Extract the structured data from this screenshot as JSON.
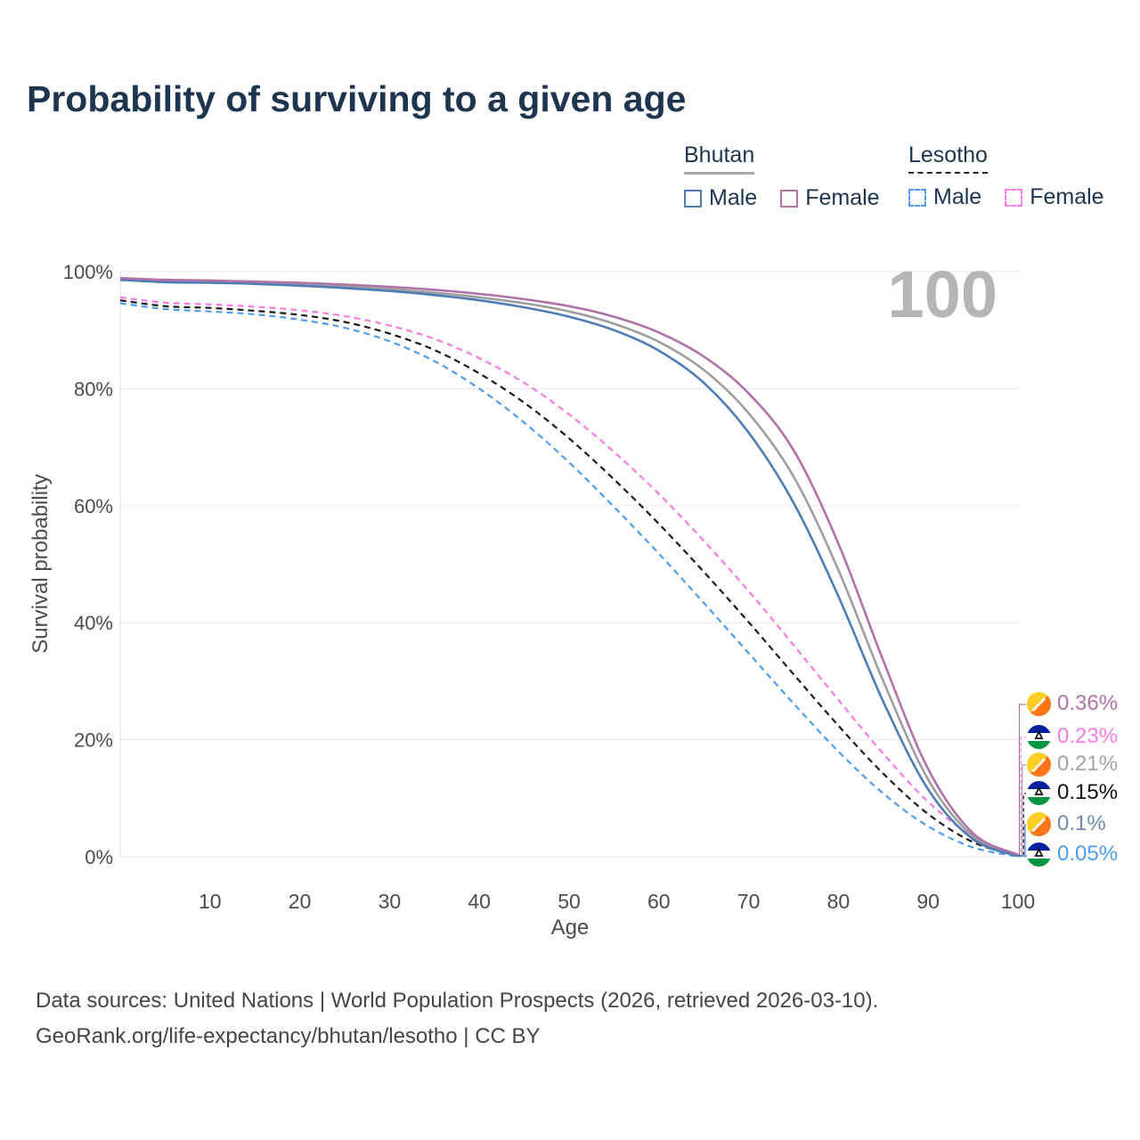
{
  "title": "Probability of surviving to a given age",
  "legend": {
    "groups": [
      {
        "country": "Bhutan",
        "underline": "solid",
        "underline_color": "#a8a8a8",
        "items": [
          {
            "label": "Male",
            "color": "#4e7cb5",
            "dashed": false
          },
          {
            "label": "Female",
            "color": "#b172a9",
            "dashed": false
          }
        ]
      },
      {
        "country": "Lesotho",
        "underline": "dashed",
        "underline_color": "#222222",
        "items": [
          {
            "label": "Male",
            "color": "#4f9df2",
            "dashed": true
          },
          {
            "label": "Female",
            "color": "#fa7ce0",
            "dashed": true
          }
        ]
      }
    ]
  },
  "chart_data": {
    "type": "line",
    "title": "Probability of surviving to a given age",
    "xlabel": "Age",
    "ylabel": "Survival probability",
    "xlim": [
      0,
      100
    ],
    "ylim": [
      0,
      100
    ],
    "x_ticks": [
      10,
      20,
      30,
      40,
      50,
      60,
      70,
      80,
      90,
      100
    ],
    "y_tick_labels": [
      "0%",
      "20%",
      "40%",
      "60%",
      "80%",
      "100%"
    ],
    "grid": "horizontal",
    "legend_position": "top-right",
    "watermark": "100",
    "x": [
      0,
      5,
      10,
      15,
      20,
      25,
      30,
      35,
      40,
      45,
      50,
      55,
      60,
      65,
      70,
      75,
      80,
      85,
      90,
      95,
      100
    ],
    "series": [
      {
        "key": "lesotho_both",
        "name": "Lesotho — Both sexes",
        "color": "#1a1a1a",
        "style": "dashed",
        "values": [
          95.1,
          94.1,
          93.8,
          93.3,
          92.6,
          91.4,
          89.4,
          86.6,
          82.6,
          77.6,
          71.5,
          64.5,
          56.9,
          48.7,
          40.1,
          31.2,
          22.4,
          14.2,
          7.3,
          2.5,
          0.15
        ]
      },
      {
        "key": "lesotho_male",
        "name": "Lesotho — Male",
        "color": "#4f9df2",
        "style": "dashed",
        "values": [
          94.6,
          93.6,
          93.2,
          92.7,
          91.8,
          90.4,
          88.1,
          84.7,
          80.0,
          74.2,
          67.4,
          59.8,
          51.8,
          43.4,
          34.8,
          26.2,
          18.0,
          10.8,
          5.2,
          1.6,
          0.05
        ]
      },
      {
        "key": "lesotho_female",
        "name": "Lesotho — Female",
        "color": "#fa7ce0",
        "style": "dashed",
        "values": [
          95.6,
          94.7,
          94.4,
          94.0,
          93.4,
          92.4,
          90.8,
          88.5,
          85.2,
          81.0,
          75.6,
          69.2,
          62.0,
          54.0,
          45.4,
          36.2,
          26.8,
          17.6,
          9.4,
          3.4,
          0.23
        ]
      },
      {
        "key": "bhutan_both",
        "name": "Bhutan — Both sexes",
        "color": "#9e9e9e",
        "style": "solid",
        "values": [
          98.7,
          98.4,
          98.3,
          98.1,
          97.8,
          97.5,
          97.0,
          96.4,
          95.6,
          94.6,
          93.2,
          91.1,
          88.0,
          83.2,
          75.8,
          65.0,
          49.0,
          30.0,
          13.2,
          3.5,
          0.21
        ]
      },
      {
        "key": "bhutan_male",
        "name": "Bhutan — Male",
        "color": "#4e7cb5",
        "style": "solid",
        "values": [
          98.6,
          98.2,
          98.1,
          97.9,
          97.6,
          97.2,
          96.7,
          96.0,
          95.1,
          93.9,
          92.3,
          90.0,
          86.5,
          81.0,
          72.5,
          60.5,
          44.5,
          26.5,
          11.5,
          3.0,
          0.1
        ]
      },
      {
        "key": "bhutan_female",
        "name": "Bhutan — Female",
        "color": "#b172a9",
        "style": "solid",
        "values": [
          98.9,
          98.6,
          98.5,
          98.3,
          98.1,
          97.8,
          97.4,
          96.9,
          96.2,
          95.3,
          94.1,
          92.3,
          89.6,
          85.5,
          79.2,
          69.5,
          53.5,
          33.5,
          15.0,
          4.0,
          0.36
        ]
      }
    ]
  },
  "end_labels": [
    {
      "value": "0.36%",
      "series": "bhutan_female",
      "country": "Bhutan",
      "color": "#b172a9"
    },
    {
      "value": "0.23%",
      "series": "lesotho_female",
      "country": "Lesotho",
      "color": "#fa7ce0"
    },
    {
      "value": "0.21%",
      "series": "bhutan_both",
      "country": "Bhutan",
      "color": "#a3a3a3"
    },
    {
      "value": "0.15%",
      "series": "lesotho_both",
      "country": "Lesotho",
      "color": "#111111"
    },
    {
      "value": "0.1%",
      "series": "bhutan_male",
      "country": "Bhutan",
      "color": "#6d8cb0"
    },
    {
      "value": "0.05%",
      "series": "lesotho_male",
      "country": "Lesotho",
      "color": "#4f9df2"
    }
  ],
  "footer": {
    "line1": "Data sources: United Nations | World Population Prospects (2026, retrieved 2026-03-10).",
    "line2": "GeoRank.org/life-expectancy/bhutan/lesotho | CC BY"
  }
}
